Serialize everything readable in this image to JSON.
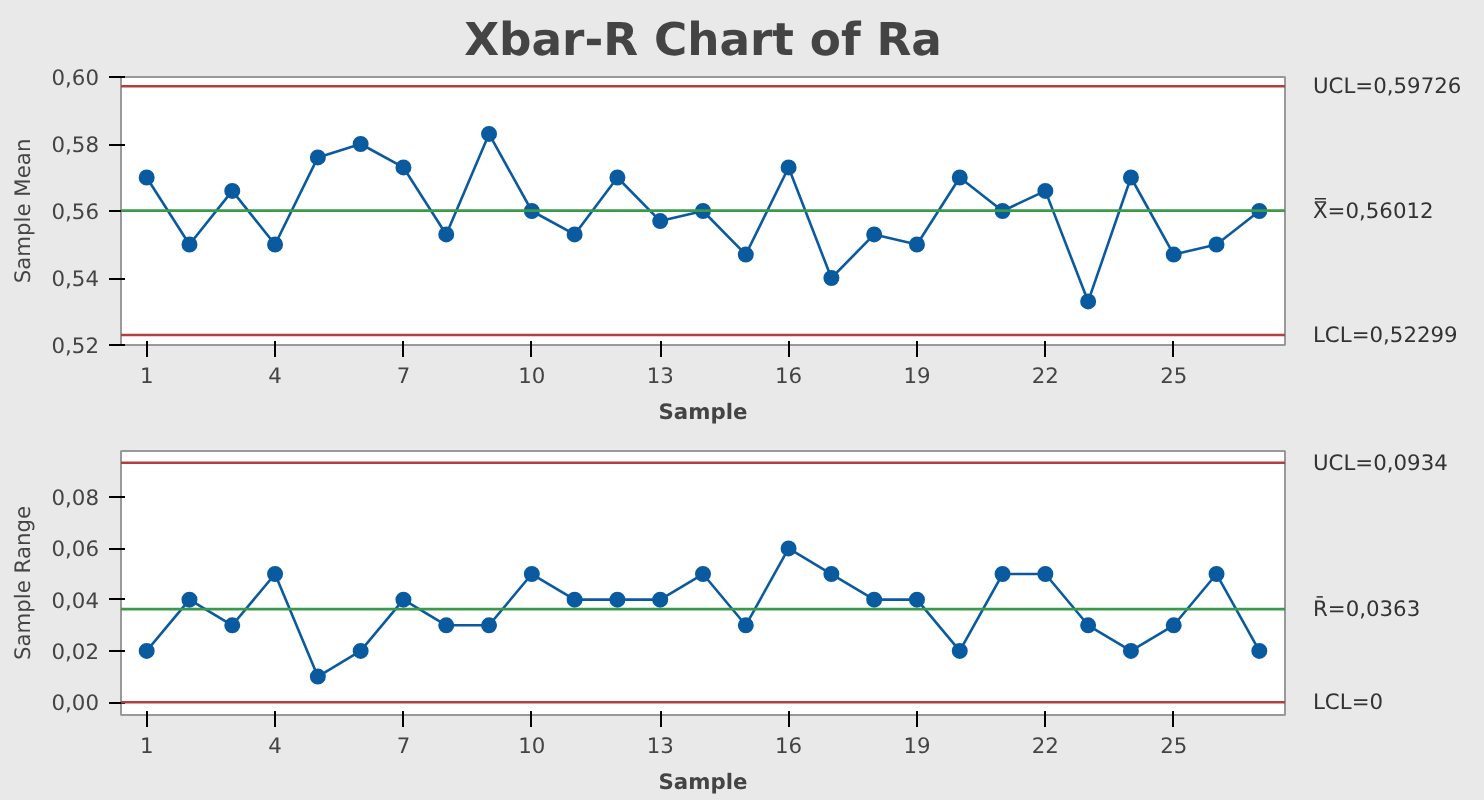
{
  "chart_data": [
    {
      "type": "line",
      "title": "Xbar-R Chart of Ra",
      "xlabel": "Sample",
      "ylabel": "Sample Mean",
      "x": [
        1,
        2,
        3,
        4,
        5,
        6,
        7,
        8,
        9,
        10,
        11,
        12,
        13,
        14,
        15,
        16,
        17,
        18,
        19,
        20,
        21,
        22,
        23,
        24,
        25,
        26,
        27
      ],
      "series": [
        {
          "color": "#0a5aa0",
          "values": [
            0.57,
            0.55,
            0.566,
            0.55,
            0.576,
            0.58,
            0.573,
            0.553,
            0.583,
            0.56,
            0.553,
            0.57,
            0.557,
            0.56,
            0.547,
            0.573,
            0.54,
            0.553,
            0.55,
            0.57,
            0.56,
            0.566,
            0.533,
            0.57,
            0.547,
            0.55,
            0.56
          ]
        }
      ],
      "xlim": [
        0.4,
        27.6
      ],
      "xticks": [
        1,
        4,
        7,
        10,
        13,
        16,
        19,
        22,
        25
      ],
      "ylim": [
        0.52,
        0.6
      ],
      "yticks": [
        {
          "value": 0.52,
          "label": "0,52"
        },
        {
          "value": 0.54,
          "label": "0,54"
        },
        {
          "value": 0.56,
          "label": "0,56"
        },
        {
          "value": 0.58,
          "label": "0,58"
        },
        {
          "value": 0.6,
          "label": "0,60"
        }
      ],
      "ref_lines": [
        {
          "axis": "y",
          "value": 0.59726,
          "label": "UCL=0,59726",
          "color": "#b04040"
        },
        {
          "axis": "y",
          "value": 0.56012,
          "label": "X̿=0,56012",
          "color": "#3a9a4a"
        },
        {
          "axis": "y",
          "value": 0.52299,
          "label": "LCL=0,52299",
          "color": "#b04040"
        }
      ],
      "marker": "circle",
      "line_style": "solid",
      "grid": false
    },
    {
      "type": "line",
      "xlabel": "Sample",
      "ylabel": "Sample Range",
      "x": [
        1,
        2,
        3,
        4,
        5,
        6,
        7,
        8,
        9,
        10,
        11,
        12,
        13,
        14,
        15,
        16,
        17,
        18,
        19,
        20,
        21,
        22,
        23,
        24,
        25,
        26,
        27
      ],
      "series": [
        {
          "color": "#0a5aa0",
          "values": [
            0.02,
            0.04,
            0.03,
            0.05,
            0.01,
            0.02,
            0.04,
            0.03,
            0.03,
            0.05,
            0.04,
            0.04,
            0.04,
            0.05,
            0.03,
            0.06,
            0.05,
            0.04,
            0.04,
            0.02,
            0.05,
            0.05,
            0.03,
            0.02,
            0.03,
            0.05,
            0.02
          ]
        }
      ],
      "xlim": [
        0.4,
        27.6
      ],
      "xticks": [
        1,
        4,
        7,
        10,
        13,
        16,
        19,
        22,
        25
      ],
      "ylim": [
        -0.005,
        0.098
      ],
      "yticks": [
        {
          "value": 0.0,
          "label": "0,00"
        },
        {
          "value": 0.02,
          "label": "0,02"
        },
        {
          "value": 0.04,
          "label": "0,04"
        },
        {
          "value": 0.06,
          "label": "0,06"
        },
        {
          "value": 0.08,
          "label": "0,08"
        }
      ],
      "ref_lines": [
        {
          "axis": "y",
          "value": 0.0934,
          "label": "UCL=0,0934",
          "color": "#b04040"
        },
        {
          "axis": "y",
          "value": 0.0363,
          "label": "R̄=0,0363",
          "color": "#3a9a4a"
        },
        {
          "axis": "y",
          "value": 0,
          "label": "LCL=0",
          "color": "#b04040"
        }
      ],
      "marker": "circle",
      "line_style": "solid",
      "grid": false
    }
  ]
}
